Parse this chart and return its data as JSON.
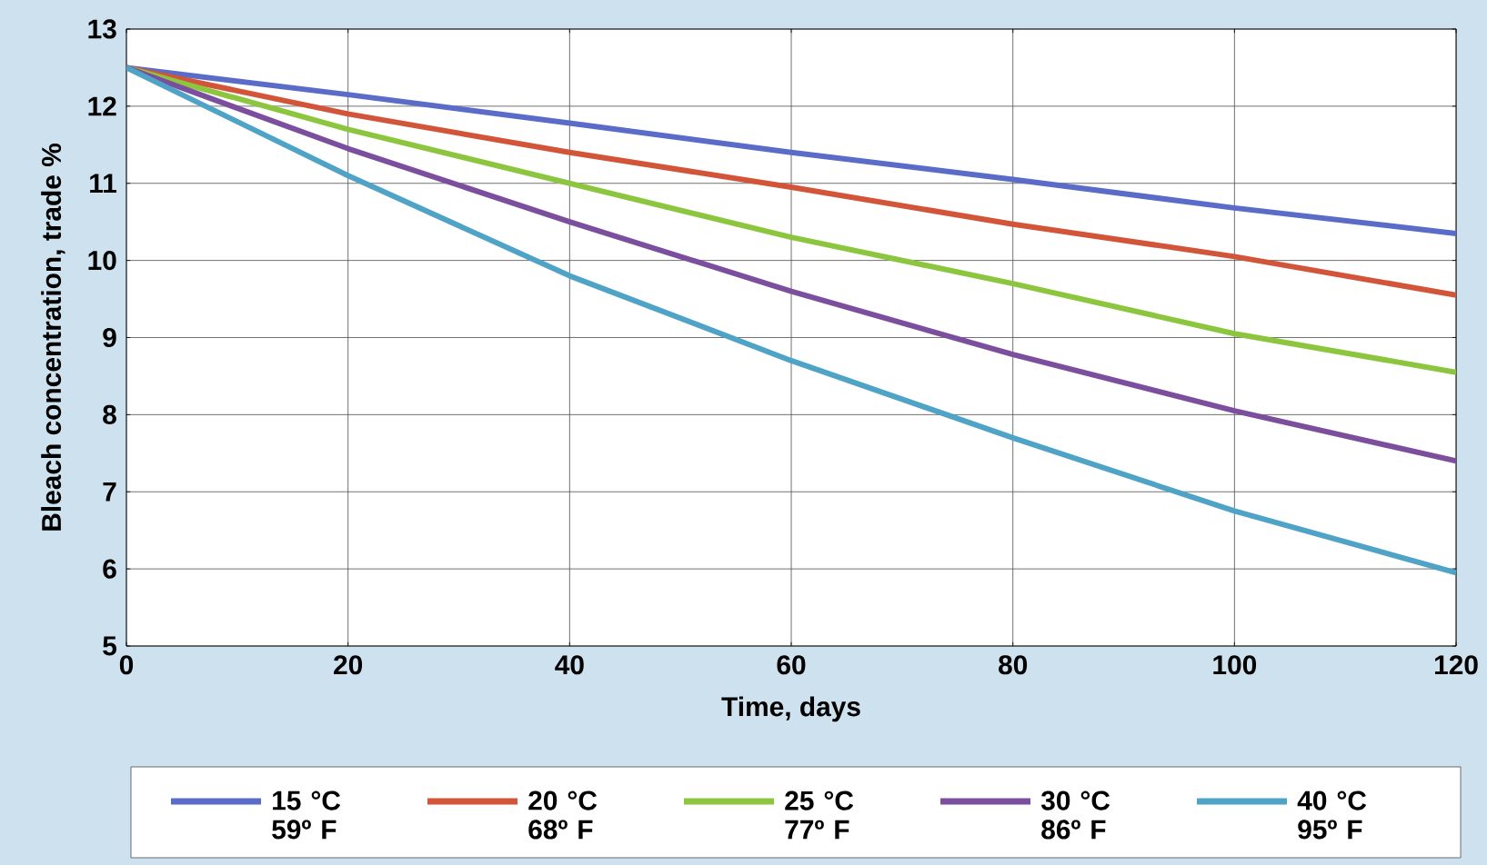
{
  "chart_data": {
    "type": "line",
    "xlabel": "Time, days",
    "ylabel": "Bleach concentration, trade %",
    "x": [
      0,
      20,
      40,
      60,
      80,
      100,
      120
    ],
    "series": [
      {
        "name": "15 °C 59º F",
        "color": "#5a6cc8",
        "values": [
          12.5,
          12.15,
          11.78,
          11.4,
          11.05,
          10.68,
          10.35
        ]
      },
      {
        "name": "20 °C 68º F",
        "color": "#d2553a",
        "values": [
          12.5,
          11.9,
          11.4,
          10.95,
          10.47,
          10.05,
          9.55
        ]
      },
      {
        "name": "25 °C 77º F",
        "color": "#8cc63f",
        "values": [
          12.5,
          11.7,
          11.0,
          10.3,
          9.7,
          9.05,
          8.55
        ]
      },
      {
        "name": "30 °C 86º F",
        "color": "#7b4f9e",
        "values": [
          12.5,
          11.45,
          10.5,
          9.6,
          8.78,
          8.05,
          7.4
        ]
      },
      {
        "name": "40 °C 95º F",
        "color": "#4fa3c7",
        "values": [
          12.5,
          11.1,
          9.8,
          8.7,
          7.7,
          6.75,
          5.95
        ]
      }
    ],
    "xlim": [
      0,
      120
    ],
    "ylim": [
      5,
      13
    ],
    "xticks": [
      0,
      20,
      40,
      60,
      80,
      100,
      120
    ],
    "yticks": [
      5,
      6,
      7,
      8,
      9,
      10,
      11,
      12,
      13
    ],
    "grid": true,
    "legend": "bottom",
    "marker": "none",
    "line_style": "solid"
  }
}
